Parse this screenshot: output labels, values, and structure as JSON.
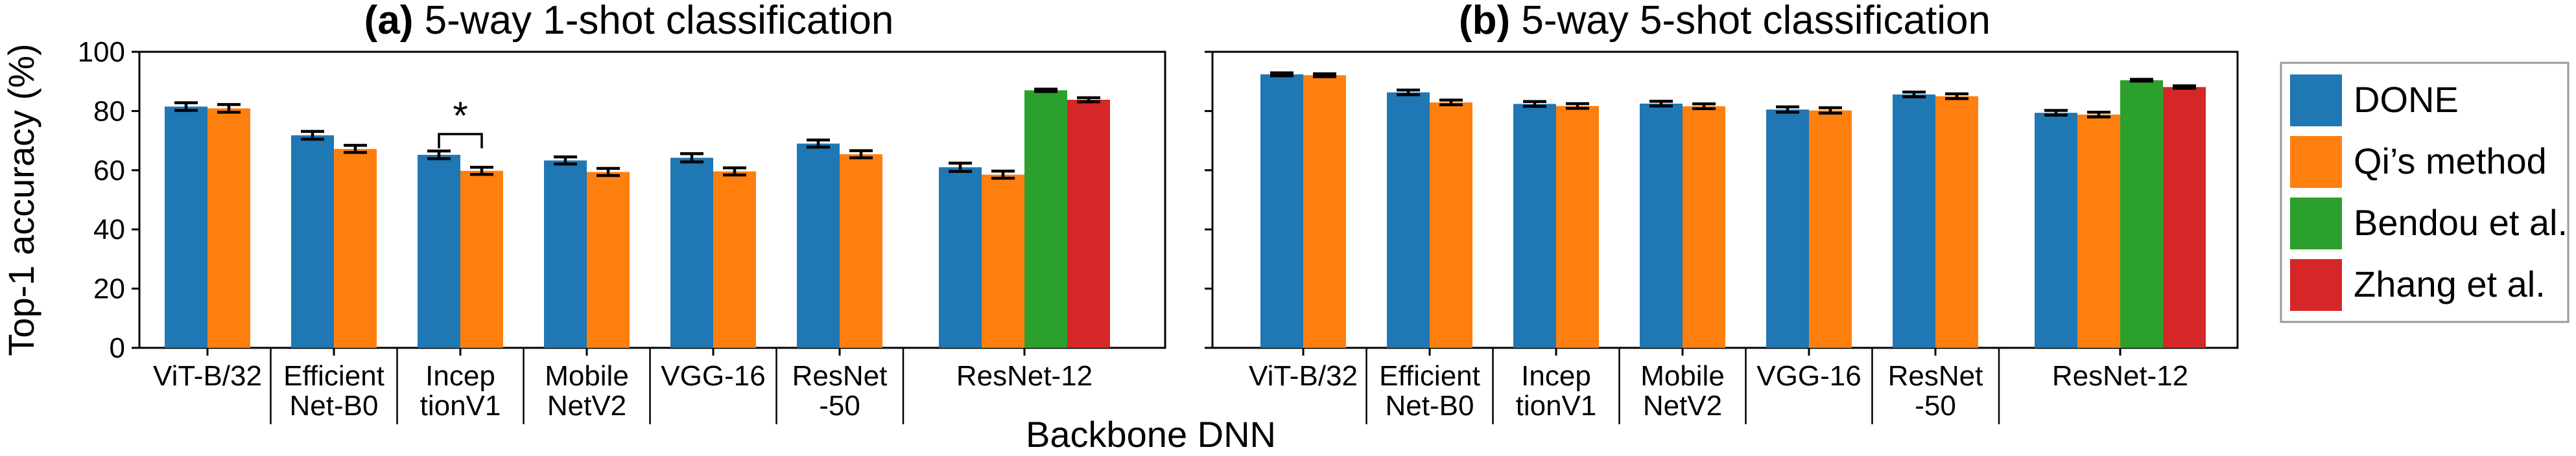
{
  "chart_data": [
    {
      "type": "bar",
      "panel_label": "(a)",
      "title": "5-way 1-shot classification",
      "ylabel": "Top-1 accuracy (%)",
      "ylim": [
        0,
        100
      ],
      "yticks": [
        "0",
        "20",
        "40",
        "60",
        "80",
        "100"
      ],
      "categories": [
        "ViT-B/32",
        "Efficient\nNet-B0",
        "Incep\ntionV1",
        "Mobile\nNetV2",
        "VGG-16",
        "ResNet\n-50",
        "ResNet-12"
      ],
      "series": [
        {
          "name": "DONE",
          "color": "#1f77b4",
          "values": [
            81.5,
            71.8,
            65.2,
            63.3,
            64.2,
            69.0,
            61.0
          ],
          "errors": [
            1.3,
            1.3,
            1.3,
            1.2,
            1.4,
            1.2,
            1.4
          ]
        },
        {
          "name": "Qi’s method",
          "color": "#ff7f0e",
          "values": [
            80.9,
            67.2,
            59.8,
            59.4,
            59.6,
            65.4,
            58.5
          ],
          "errors": [
            1.3,
            1.2,
            1.2,
            1.2,
            1.2,
            1.2,
            1.2
          ]
        },
        {
          "name": "Bendou et al.",
          "color": "#2ca02c",
          "values": [
            null,
            null,
            null,
            null,
            null,
            null,
            87.0
          ],
          "errors": [
            null,
            null,
            null,
            null,
            null,
            null,
            0.4
          ]
        },
        {
          "name": "Zhang et al.",
          "color": "#d62728",
          "values": [
            null,
            null,
            null,
            null,
            null,
            null,
            83.8
          ],
          "errors": [
            null,
            null,
            null,
            null,
            null,
            null,
            0.7
          ]
        }
      ],
      "annotation": {
        "text": "*",
        "between_category": "Incep\ntionV1"
      }
    },
    {
      "type": "bar",
      "panel_label": "(b)",
      "title": "5-way 5-shot classification",
      "ylim": [
        0,
        100
      ],
      "categories": [
        "ViT-B/32",
        "Efficient\nNet-B0",
        "Incep\ntionV1",
        "Mobile\nNetV2",
        "VGG-16",
        "ResNet\n-50",
        "ResNet-12"
      ],
      "series": [
        {
          "name": "DONE",
          "color": "#1f77b4",
          "values": [
            92.4,
            86.3,
            82.4,
            82.5,
            80.5,
            85.6,
            79.4
          ],
          "errors": [
            0.5,
            0.8,
            0.8,
            0.8,
            0.9,
            0.8,
            0.8
          ]
        },
        {
          "name": "Qi’s method",
          "color": "#ff7f0e",
          "values": [
            92.1,
            82.9,
            81.7,
            81.6,
            80.2,
            85.0,
            78.8
          ],
          "errors": [
            0.5,
            0.8,
            0.8,
            0.8,
            0.9,
            0.8,
            0.8
          ]
        },
        {
          "name": "Bendou et al.",
          "color": "#2ca02c",
          "values": [
            null,
            null,
            null,
            null,
            null,
            null,
            90.4
          ],
          "errors": [
            null,
            null,
            null,
            null,
            null,
            null,
            0.3
          ]
        },
        {
          "name": "Zhang et al.",
          "color": "#d62728",
          "values": [
            null,
            null,
            null,
            null,
            null,
            null,
            88.1
          ],
          "errors": [
            null,
            null,
            null,
            null,
            null,
            null,
            0.4
          ]
        }
      ]
    }
  ],
  "xlabel": "Backbone DNN",
  "legend": {
    "placement": "right",
    "entries": [
      {
        "label": "DONE",
        "color": "#1f77b4"
      },
      {
        "label": "Qi’s method",
        "color": "#ff7f0e"
      },
      {
        "label": "Bendou et al.",
        "color": "#2ca02c"
      },
      {
        "label": "Zhang et al.",
        "color": "#d62728"
      }
    ]
  }
}
